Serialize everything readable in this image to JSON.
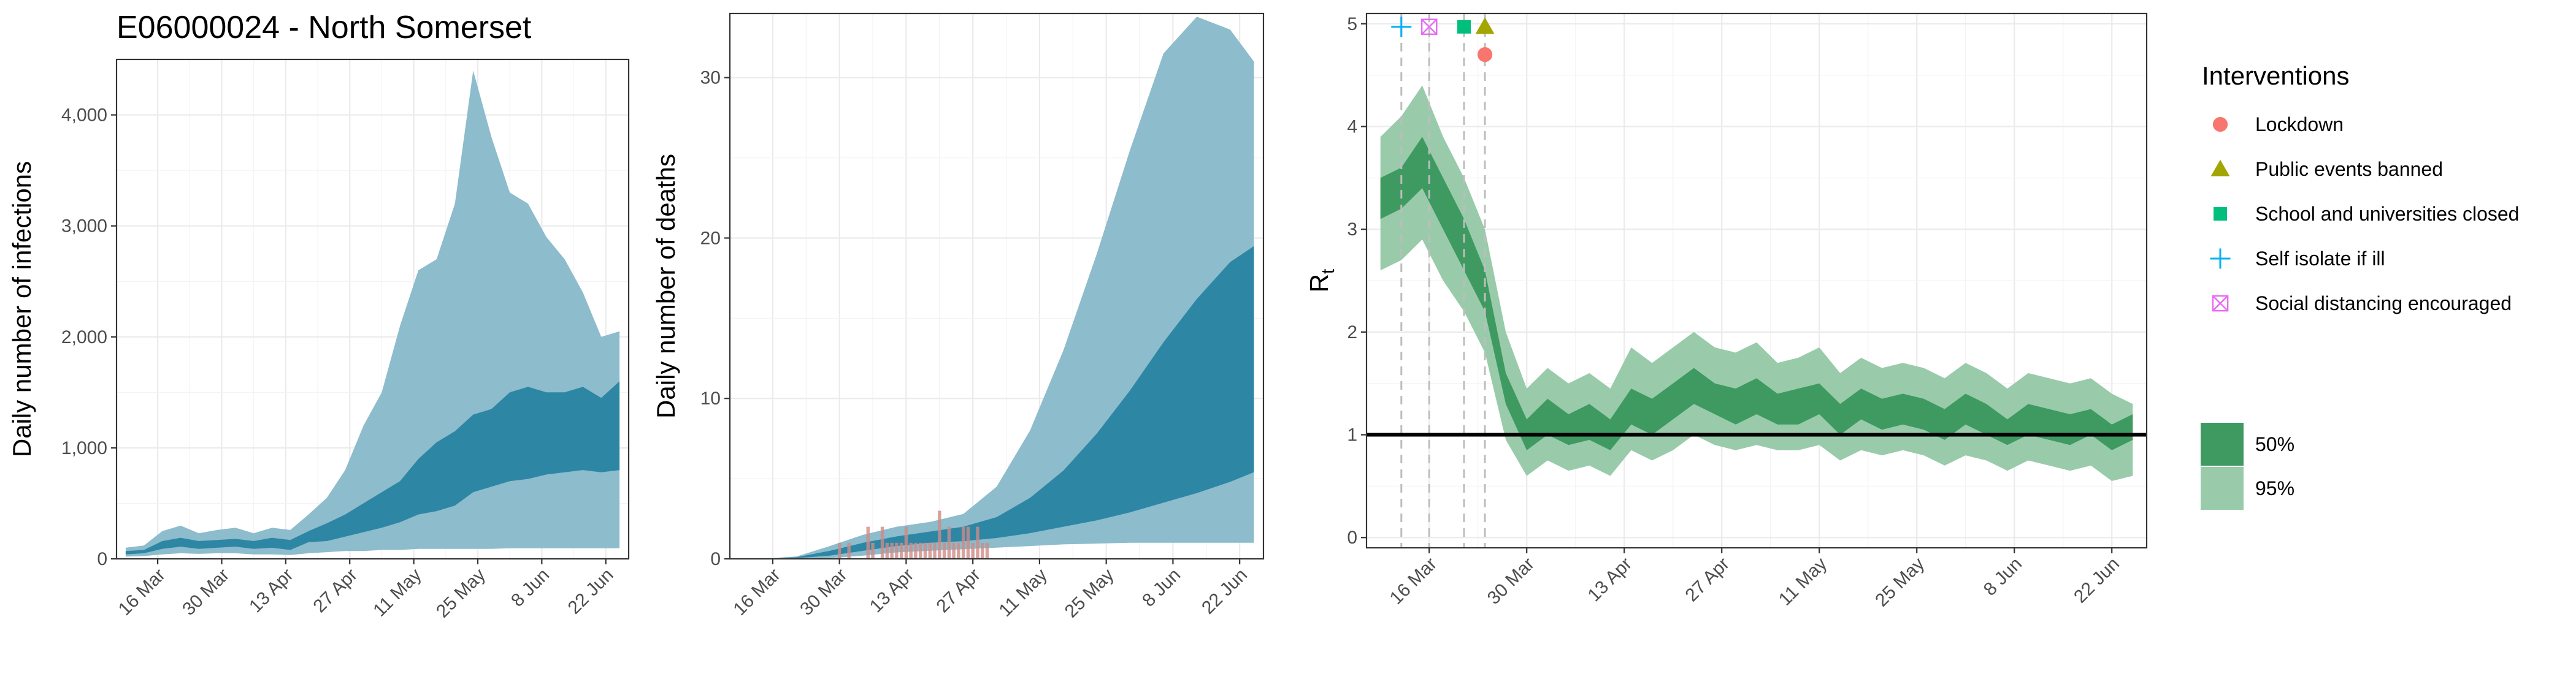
{
  "title": "E06000024 - North Somerset",
  "colors": {
    "infections_50": "#2e86a5",
    "infections_95": "#8dbccc",
    "deaths_bar": "#cd8b87",
    "rt_50": "#3f9a61",
    "rt_95": "#99cbab",
    "rt_line": "#000000",
    "intervention_line": "#bdbdbd",
    "lockdown": "#f8766d",
    "public_events": "#a3a500",
    "schools": "#00bf7d",
    "self_isolate": "#00b0f6",
    "social_distancing": "#e76bf3"
  },
  "chart_data": [
    {
      "type": "area",
      "ylabel": "Daily number of infections",
      "xlabel": "",
      "xlim": [
        "2020-03-07",
        "2020-06-27"
      ],
      "ylim": [
        0,
        4500
      ],
      "x_ticks": [
        "2020-03-16",
        "2020-03-30",
        "2020-04-13",
        "2020-04-27",
        "2020-05-11",
        "2020-05-25",
        "2020-06-08",
        "2020-06-22"
      ],
      "x_tick_labels": [
        "16 Mar",
        "30 Mar",
        "13 Apr",
        "27 Apr",
        "11 May",
        "25 May",
        "8 Jun",
        "22 Jun"
      ],
      "y_ticks": [
        0,
        1000,
        2000,
        3000,
        4000
      ],
      "y_tick_labels": [
        "0",
        "1,000",
        "2,000",
        "3,000",
        "4,000"
      ],
      "grid": true,
      "x": [
        "2020-03-09",
        "2020-03-13",
        "2020-03-17",
        "2020-03-21",
        "2020-03-25",
        "2020-03-29",
        "2020-04-02",
        "2020-04-06",
        "2020-04-10",
        "2020-04-14",
        "2020-04-18",
        "2020-04-22",
        "2020-04-26",
        "2020-04-30",
        "2020-05-04",
        "2020-05-08",
        "2020-05-12",
        "2020-05-16",
        "2020-05-20",
        "2020-05-24",
        "2020-05-28",
        "2020-06-01",
        "2020-06-05",
        "2020-06-09",
        "2020-06-13",
        "2020-06-17",
        "2020-06-21",
        "2020-06-25"
      ],
      "series": [
        {
          "band": "50%",
          "low": [
            40,
            50,
            90,
            110,
            90,
            100,
            110,
            90,
            100,
            80,
            150,
            160,
            200,
            240,
            280,
            330,
            400,
            430,
            480,
            600,
            650,
            700,
            720,
            760,
            780,
            800,
            780,
            800
          ],
          "high": [
            70,
            80,
            160,
            190,
            160,
            170,
            180,
            160,
            190,
            170,
            250,
            320,
            400,
            500,
            600,
            700,
            900,
            1050,
            1150,
            1300,
            1350,
            1500,
            1550,
            1500,
            1500,
            1550,
            1450,
            1600
          ]
        },
        {
          "band": "95%",
          "low": [
            20,
            25,
            40,
            50,
            45,
            50,
            50,
            40,
            40,
            35,
            50,
            60,
            70,
            70,
            80,
            80,
            90,
            90,
            90,
            90,
            90,
            95,
            95,
            95,
            95,
            95,
            95,
            95
          ],
          "high": [
            100,
            120,
            250,
            300,
            230,
            260,
            280,
            230,
            280,
            260,
            400,
            550,
            800,
            1200,
            1500,
            2100,
            2600,
            2700,
            3200,
            4400,
            3800,
            3300,
            3200,
            2900,
            2700,
            2400,
            2000,
            2050
          ]
        }
      ]
    },
    {
      "type": "area",
      "ylabel": "Daily number of deaths",
      "xlabel": "",
      "xlim": [
        "2020-03-07",
        "2020-06-27"
      ],
      "ylim": [
        0,
        34
      ],
      "x_ticks": [
        "2020-03-16",
        "2020-03-30",
        "2020-04-13",
        "2020-04-27",
        "2020-05-11",
        "2020-05-25",
        "2020-06-08",
        "2020-06-22"
      ],
      "x_tick_labels": [
        "16 Mar",
        "30 Mar",
        "13 Apr",
        "27 Apr",
        "11 May",
        "25 May",
        "8 Jun",
        "22 Jun"
      ],
      "y_ticks": [
        0,
        10,
        20,
        30
      ],
      "y_tick_labels": [
        "0",
        "10",
        "20",
        "30"
      ],
      "grid": true,
      "x": [
        "2020-03-14",
        "2020-03-21",
        "2020-03-28",
        "2020-04-04",
        "2020-04-11",
        "2020-04-18",
        "2020-04-25",
        "2020-05-02",
        "2020-05-09",
        "2020-05-16",
        "2020-05-23",
        "2020-05-30",
        "2020-06-06",
        "2020-06-13",
        "2020-06-20",
        "2020-06-25"
      ],
      "series": [
        {
          "band": "50%",
          "low": [
            0,
            0.05,
            0.2,
            0.5,
            0.8,
            1.0,
            1.1,
            1.3,
            1.6,
            2.0,
            2.4,
            2.9,
            3.5,
            4.1,
            4.8,
            5.4
          ],
          "high": [
            0,
            0.1,
            0.5,
            1.0,
            1.4,
            1.7,
            2.0,
            2.6,
            3.8,
            5.5,
            7.8,
            10.5,
            13.5,
            16.2,
            18.5,
            19.5
          ]
        },
        {
          "band": "95%",
          "low": [
            0,
            0,
            0.05,
            0.2,
            0.4,
            0.5,
            0.6,
            0.7,
            0.8,
            0.9,
            0.95,
            1.0,
            1.0,
            1.0,
            1.0,
            1.0
          ],
          "high": [
            0,
            0.15,
            0.8,
            1.5,
            2.0,
            2.3,
            2.8,
            4.5,
            8.0,
            13.0,
            19.0,
            25.5,
            31.5,
            33.8,
            33.0,
            31.0
          ]
        }
      ],
      "bars": {
        "dates": [
          "2020-03-30",
          "2020-04-01",
          "2020-04-05",
          "2020-04-06",
          "2020-04-08",
          "2020-04-09",
          "2020-04-10",
          "2020-04-11",
          "2020-04-12",
          "2020-04-13",
          "2020-04-14",
          "2020-04-15",
          "2020-04-16",
          "2020-04-17",
          "2020-04-18",
          "2020-04-19",
          "2020-04-20",
          "2020-04-21",
          "2020-04-22",
          "2020-04-23",
          "2020-04-24",
          "2020-04-25",
          "2020-04-26",
          "2020-04-27",
          "2020-04-28",
          "2020-04-29",
          "2020-04-30"
        ],
        "values": [
          1,
          1,
          2,
          1,
          2,
          1,
          1,
          1,
          1,
          2,
          1,
          1,
          1,
          1,
          1,
          1,
          3,
          1,
          2,
          1,
          1,
          2,
          2,
          1,
          2,
          1,
          1
        ]
      }
    },
    {
      "type": "area",
      "ylabel": "R",
      "ylabel_sub": "t",
      "xlabel": "",
      "xlim": [
        "2020-03-07",
        "2020-06-27"
      ],
      "ylim": [
        -0.1,
        5.1
      ],
      "x_ticks": [
        "2020-03-16",
        "2020-03-30",
        "2020-04-13",
        "2020-04-27",
        "2020-05-11",
        "2020-05-25",
        "2020-06-08",
        "2020-06-22"
      ],
      "x_tick_labels": [
        "16 Mar",
        "30 Mar",
        "13 Apr",
        "27 Apr",
        "11 May",
        "25 May",
        "8 Jun",
        "22 Jun"
      ],
      "y_ticks": [
        0,
        1,
        2,
        3,
        4,
        5
      ],
      "y_tick_labels": [
        "0",
        "1",
        "2",
        "3",
        "4",
        "5"
      ],
      "grid": true,
      "reference_line": 1,
      "x": [
        "2020-03-09",
        "2020-03-12",
        "2020-03-15",
        "2020-03-18",
        "2020-03-21",
        "2020-03-24",
        "2020-03-27",
        "2020-03-30",
        "2020-04-02",
        "2020-04-05",
        "2020-04-08",
        "2020-04-11",
        "2020-04-14",
        "2020-04-17",
        "2020-04-20",
        "2020-04-23",
        "2020-04-26",
        "2020-04-29",
        "2020-05-02",
        "2020-05-05",
        "2020-05-08",
        "2020-05-11",
        "2020-05-14",
        "2020-05-17",
        "2020-05-20",
        "2020-05-23",
        "2020-05-26",
        "2020-05-29",
        "2020-06-01",
        "2020-06-04",
        "2020-06-07",
        "2020-06-10",
        "2020-06-13",
        "2020-06-16",
        "2020-06-19",
        "2020-06-22",
        "2020-06-25"
      ],
      "series": [
        {
          "band": "50%",
          "low": [
            3.1,
            3.2,
            3.4,
            3.0,
            2.6,
            2.2,
            1.3,
            0.85,
            1.0,
            0.9,
            0.95,
            0.85,
            1.1,
            1.0,
            1.15,
            1.3,
            1.2,
            1.1,
            1.2,
            1.1,
            1.1,
            1.2,
            1.0,
            1.15,
            1.05,
            1.1,
            1.05,
            0.95,
            1.1,
            1.0,
            0.9,
            1.0,
            0.95,
            0.9,
            1.0,
            0.85,
            0.95
          ],
          "high": [
            3.5,
            3.6,
            3.9,
            3.5,
            3.1,
            2.6,
            1.6,
            1.15,
            1.35,
            1.2,
            1.3,
            1.15,
            1.45,
            1.35,
            1.5,
            1.65,
            1.5,
            1.45,
            1.55,
            1.4,
            1.45,
            1.5,
            1.3,
            1.45,
            1.35,
            1.4,
            1.35,
            1.25,
            1.4,
            1.3,
            1.15,
            1.3,
            1.25,
            1.2,
            1.25,
            1.1,
            1.2
          ]
        },
        {
          "band": "95%",
          "low": [
            2.6,
            2.7,
            2.9,
            2.5,
            2.2,
            1.8,
            0.95,
            0.6,
            0.75,
            0.65,
            0.7,
            0.6,
            0.85,
            0.75,
            0.85,
            1.0,
            0.9,
            0.85,
            0.9,
            0.85,
            0.85,
            0.9,
            0.75,
            0.85,
            0.8,
            0.85,
            0.8,
            0.7,
            0.8,
            0.75,
            0.65,
            0.75,
            0.7,
            0.65,
            0.7,
            0.55,
            0.6
          ],
          "high": [
            3.9,
            4.1,
            4.4,
            3.9,
            3.5,
            3.0,
            2.0,
            1.45,
            1.65,
            1.5,
            1.6,
            1.45,
            1.85,
            1.7,
            1.85,
            2.0,
            1.85,
            1.8,
            1.9,
            1.7,
            1.75,
            1.85,
            1.6,
            1.75,
            1.65,
            1.7,
            1.65,
            1.55,
            1.7,
            1.6,
            1.45,
            1.6,
            1.55,
            1.5,
            1.55,
            1.4,
            1.3
          ]
        }
      ],
      "interventions": [
        {
          "name": "Self isolate if ill",
          "date": "2020-03-12",
          "y": 4.97,
          "shape": "plus",
          "color_key": "self_isolate"
        },
        {
          "name": "Social distancing encouraged",
          "date": "2020-03-16",
          "y": 4.97,
          "shape": "square-cross",
          "color_key": "social_distancing"
        },
        {
          "name": "School and universities closed",
          "date": "2020-03-21",
          "y": 4.97,
          "shape": "square",
          "color_key": "schools"
        },
        {
          "name": "Public events banned",
          "date": "2020-03-24",
          "y": 4.97,
          "shape": "triangle",
          "color_key": "public_events"
        },
        {
          "name": "Lockdown",
          "date": "2020-03-24",
          "y": 4.7,
          "shape": "circle",
          "color_key": "lockdown"
        }
      ]
    }
  ],
  "legend": {
    "title": "Interventions",
    "items": [
      {
        "label": "Lockdown",
        "shape": "circle",
        "color_key": "lockdown"
      },
      {
        "label": "Public events banned",
        "shape": "triangle",
        "color_key": "public_events"
      },
      {
        "label": "School and universities closed",
        "shape": "square",
        "color_key": "schools"
      },
      {
        "label": "Self isolate if ill",
        "shape": "plus",
        "color_key": "self_isolate"
      },
      {
        "label": "Social distancing encouraged",
        "shape": "square-cross",
        "color_key": "social_distancing"
      }
    ],
    "bands": [
      {
        "label": "50%",
        "color_key": "rt_50"
      },
      {
        "label": "95%",
        "color_key": "rt_95"
      }
    ]
  }
}
